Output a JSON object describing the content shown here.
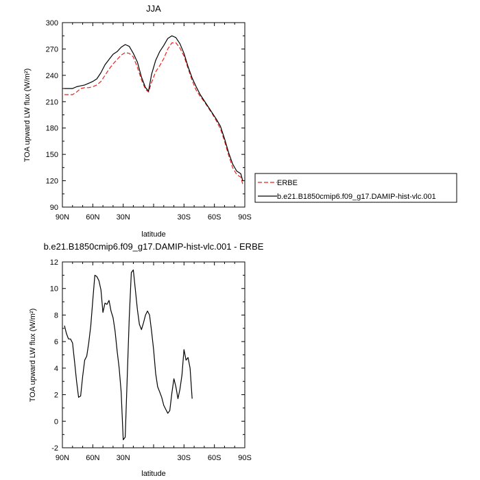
{
  "chart_data": [
    {
      "type": "line",
      "title": "JJA",
      "xlabel": "latitude",
      "ylabel": "TOA upward LW flux (W/m²)",
      "xlim": [
        90,
        -90
      ],
      "ylim": [
        90,
        300
      ],
      "x_tick_values": [
        90,
        60,
        30,
        0,
        -30,
        -60,
        -90
      ],
      "x_tick_labels": [
        "90N",
        "60N",
        "30N",
        "",
        "30S",
        "60S",
        "90S"
      ],
      "y_tick_values": [
        90,
        120,
        150,
        180,
        210,
        240,
        270,
        300
      ],
      "y_tick_labels": [
        "90",
        "120",
        "150",
        "180",
        "210",
        "240",
        "270",
        "300"
      ],
      "legend_position": "outside-right",
      "series": [
        {
          "name": "ERBE",
          "color": "#e8201e",
          "dash": "dashed",
          "points": [
            [
              88,
              218
            ],
            [
              84,
              218
            ],
            [
              80,
              218
            ],
            [
              76,
              221
            ],
            [
              72,
              225
            ],
            [
              68,
              226
            ],
            [
              64,
              226
            ],
            [
              60,
              227
            ],
            [
              56,
              229
            ],
            [
              52,
              233
            ],
            [
              48,
              240
            ],
            [
              44,
              247
            ],
            [
              40,
              253
            ],
            [
              36,
              258
            ],
            [
              32,
              263
            ],
            [
              28,
              266
            ],
            [
              24,
              265
            ],
            [
              20,
              261
            ],
            [
              16,
              249
            ],
            [
              12,
              235
            ],
            [
              8,
              224
            ],
            [
              5,
              221
            ],
            [
              2,
              232
            ],
            [
              -2,
              244
            ],
            [
              -6,
              251
            ],
            [
              -10,
              259
            ],
            [
              -14,
              270
            ],
            [
              -18,
              277
            ],
            [
              -22,
              277
            ],
            [
              -26,
              271
            ],
            [
              -30,
              262
            ],
            [
              -34,
              248
            ],
            [
              -38,
              234
            ],
            [
              -42,
              223
            ],
            [
              -46,
              216
            ],
            [
              -50,
              210
            ],
            [
              -54,
              203
            ],
            [
              -58,
              196
            ],
            [
              -62,
              188
            ],
            [
              -66,
              179
            ],
            [
              -70,
              165
            ],
            [
              -74,
              149
            ],
            [
              -78,
              135
            ],
            [
              -82,
              127
            ],
            [
              -86,
              124
            ],
            [
              -88,
              116
            ]
          ]
        },
        {
          "name": "b.e21.B1850cmip6.f09_g17.DAMIP-hist-vlc.001",
          "color": "#000000",
          "dash": "solid",
          "points": [
            [
              88,
              225
            ],
            [
              84,
              225
            ],
            [
              80,
              225
            ],
            [
              76,
              227
            ],
            [
              72,
              228
            ],
            [
              68,
              229
            ],
            [
              64,
              231
            ],
            [
              60,
              233
            ],
            [
              56,
              236
            ],
            [
              52,
              243
            ],
            [
              48,
              252
            ],
            [
              44,
              258
            ],
            [
              40,
              264
            ],
            [
              36,
              267
            ],
            [
              32,
              272
            ],
            [
              28,
              275
            ],
            [
              24,
              273
            ],
            [
              20,
              265
            ],
            [
              16,
              255
            ],
            [
              12,
              238
            ],
            [
              8,
              226
            ],
            [
              5,
              222
            ],
            [
              2,
              241
            ],
            [
              -2,
              257
            ],
            [
              -6,
              267
            ],
            [
              -10,
              274
            ],
            [
              -14,
              282
            ],
            [
              -18,
              285
            ],
            [
              -22,
              283
            ],
            [
              -26,
              276
            ],
            [
              -30,
              265
            ],
            [
              -34,
              250
            ],
            [
              -38,
              237
            ],
            [
              -42,
              227
            ],
            [
              -46,
              218
            ],
            [
              -50,
              211
            ],
            [
              -54,
              204
            ],
            [
              -58,
              197
            ],
            [
              -62,
              190
            ],
            [
              -66,
              182
            ],
            [
              -70,
              168
            ],
            [
              -74,
              152
            ],
            [
              -78,
              139
            ],
            [
              -82,
              131
            ],
            [
              -86,
              128
            ],
            [
              -88,
              120
            ]
          ]
        }
      ]
    },
    {
      "type": "line",
      "title": "b.e21.B1850cmip6.f09_g17.DAMIP-hist-vlc.001 - ERBE",
      "xlabel": "latitude",
      "ylabel": "TOA upward LW flux (W/m²)",
      "xlim": [
        90,
        -90
      ],
      "ylim": [
        -2,
        12
      ],
      "x_tick_values": [
        90,
        60,
        30,
        0,
        -30,
        -60,
        -90
      ],
      "x_tick_labels": [
        "90N",
        "60N",
        "30N",
        "",
        "30S",
        "60S",
        "90S"
      ],
      "y_tick_values": [
        -2,
        0,
        2,
        4,
        6,
        8,
        10,
        12
      ],
      "y_tick_labels": [
        "-2",
        "0",
        "2",
        "4",
        "6",
        "8",
        "10",
        "12"
      ],
      "series": [
        {
          "color": "#000000",
          "dash": "solid",
          "points": [
            [
              88,
              7.2
            ],
            [
              86,
              6.6
            ],
            [
              84,
              6.2
            ],
            [
              82,
              6.2
            ],
            [
              80,
              5.9
            ],
            [
              78,
              4.5
            ],
            [
              76,
              3.0
            ],
            [
              74,
              1.8
            ],
            [
              72,
              1.9
            ],
            [
              70,
              3.4
            ],
            [
              68,
              4.6
            ],
            [
              66,
              4.9
            ],
            [
              64,
              5.9
            ],
            [
              62,
              7.2
            ],
            [
              60,
              9.1
            ],
            [
              58,
              11.0
            ],
            [
              56,
              10.9
            ],
            [
              54,
              10.6
            ],
            [
              52,
              9.9
            ],
            [
              50,
              8.2
            ],
            [
              48,
              8.9
            ],
            [
              46,
              8.8
            ],
            [
              44,
              9.1
            ],
            [
              42,
              8.3
            ],
            [
              40,
              7.8
            ],
            [
              38,
              6.8
            ],
            [
              36,
              5.3
            ],
            [
              34,
              4.0
            ],
            [
              32,
              2.2
            ],
            [
              30,
              -1.4
            ],
            [
              28,
              -1.2
            ],
            [
              26,
              3.4
            ],
            [
              24,
              7.8
            ],
            [
              22,
              11.2
            ],
            [
              20,
              11.4
            ],
            [
              18,
              9.9
            ],
            [
              16,
              8.4
            ],
            [
              14,
              7.3
            ],
            [
              12,
              6.9
            ],
            [
              10,
              7.4
            ],
            [
              8,
              8.0
            ],
            [
              6,
              8.3
            ],
            [
              4,
              8.0
            ],
            [
              2,
              6.8
            ],
            [
              0,
              5.4
            ],
            [
              -2,
              3.6
            ],
            [
              -4,
              2.6
            ],
            [
              -6,
              2.2
            ],
            [
              -8,
              1.8
            ],
            [
              -10,
              1.2
            ],
            [
              -12,
              0.9
            ],
            [
              -14,
              0.6
            ],
            [
              -16,
              0.8
            ],
            [
              -18,
              2.1
            ],
            [
              -20,
              3.2
            ],
            [
              -22,
              2.6
            ],
            [
              -24,
              1.7
            ],
            [
              -26,
              2.4
            ],
            [
              -28,
              3.5
            ],
            [
              -30,
              5.4
            ],
            [
              -32,
              4.6
            ],
            [
              -34,
              4.8
            ],
            [
              -36,
              4.0
            ],
            [
              -38,
              1.7
            ]
          ]
        }
      ]
    }
  ]
}
